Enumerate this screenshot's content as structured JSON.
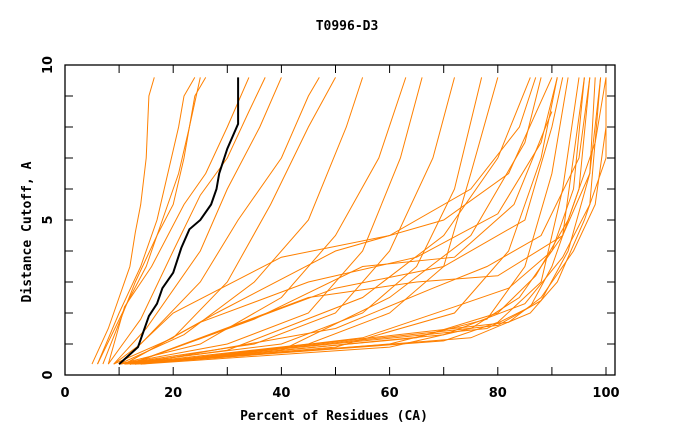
{
  "chart_data": {
    "type": "line",
    "title": "T0996-D3",
    "xlabel": "Percent of Residues (CA)",
    "ylabel": "Distance Cutoff, A",
    "xlim": [
      0,
      101.7
    ],
    "ylim": [
      0,
      10
    ],
    "x_ticks": [
      "0",
      "20",
      "40",
      "60",
      "80",
      "100"
    ],
    "x_tick_values": [
      0,
      20,
      40,
      60,
      80,
      100
    ],
    "y_ticks": [
      "0",
      "5",
      "10"
    ],
    "y_tick_values": [
      0,
      5,
      10
    ],
    "grid": false,
    "colors": {
      "models": "#ff8000",
      "highlight": "#000000"
    },
    "highlight": [
      [
        10,
        0.35
      ],
      [
        13.5,
        0.9
      ],
      [
        15.5,
        1.9
      ],
      [
        17,
        2.3
      ],
      [
        18,
        2.8
      ],
      [
        20,
        3.3
      ],
      [
        21.5,
        4.1
      ],
      [
        23,
        4.7
      ],
      [
        25,
        5.0
      ],
      [
        27,
        5.5
      ],
      [
        28,
        6.0
      ],
      [
        28.5,
        6.5
      ],
      [
        30,
        7.3
      ],
      [
        32,
        8.1
      ],
      [
        32,
        9.6
      ]
    ],
    "series": [
      [
        [
          5,
          0.35
        ],
        [
          8,
          1.5
        ],
        [
          10,
          2.5
        ],
        [
          12,
          3.5
        ],
        [
          13,
          4.6
        ],
        [
          14,
          5.5
        ],
        [
          15,
          7
        ],
        [
          15.5,
          9
        ],
        [
          16.5,
          9.6
        ]
      ],
      [
        [
          6,
          0.35
        ],
        [
          10,
          2
        ],
        [
          14,
          3.5
        ],
        [
          17,
          5
        ],
        [
          19,
          6.5
        ],
        [
          21,
          8
        ],
        [
          22,
          9
        ],
        [
          24,
          9.6
        ]
      ],
      [
        [
          6,
          0.35
        ],
        [
          12,
          2.5
        ],
        [
          15,
          3.5
        ],
        [
          18,
          5
        ],
        [
          21,
          6.5
        ],
        [
          23,
          8
        ],
        [
          25,
          9.6
        ]
      ],
      [
        [
          7,
          0.35
        ],
        [
          13,
          3
        ],
        [
          17,
          4.5
        ],
        [
          20,
          5.5
        ],
        [
          22,
          7
        ],
        [
          24,
          9
        ],
        [
          26,
          9.6
        ]
      ],
      [
        [
          8,
          0.35
        ],
        [
          11,
          2.2
        ],
        [
          16,
          3.5
        ],
        [
          22,
          5.5
        ],
        [
          26,
          6.5
        ],
        [
          30,
          8
        ],
        [
          34,
          9.6
        ]
      ],
      [
        [
          8,
          0.35
        ],
        [
          14,
          1.8
        ],
        [
          20,
          4
        ],
        [
          25,
          5.8
        ],
        [
          30,
          7
        ],
        [
          34,
          8.5
        ],
        [
          37,
          9.6
        ]
      ],
      [
        [
          9,
          0.35
        ],
        [
          15,
          1.5
        ],
        [
          25,
          4
        ],
        [
          30,
          6
        ],
        [
          36,
          8
        ],
        [
          40,
          9.6
        ]
      ],
      [
        [
          9,
          0.35
        ],
        [
          14,
          1
        ],
        [
          25,
          3
        ],
        [
          32,
          5
        ],
        [
          40,
          7
        ],
        [
          45,
          9
        ],
        [
          47,
          9.6
        ]
      ],
      [
        [
          9,
          0.35
        ],
        [
          20,
          1.2
        ],
        [
          30,
          3
        ],
        [
          38,
          5.5
        ],
        [
          45,
          8
        ],
        [
          50,
          9.6
        ]
      ],
      [
        [
          10,
          0.35
        ],
        [
          22,
          1.3
        ],
        [
          35,
          3
        ],
        [
          45,
          5
        ],
        [
          52,
          8
        ],
        [
          55,
          9.6
        ]
      ],
      [
        [
          10,
          0.35
        ],
        [
          25,
          1
        ],
        [
          40,
          2.5
        ],
        [
          50,
          4.5
        ],
        [
          58,
          7
        ],
        [
          63,
          9.6
        ]
      ],
      [
        [
          10,
          0.35
        ],
        [
          30,
          1
        ],
        [
          45,
          2
        ],
        [
          55,
          4
        ],
        [
          62,
          7
        ],
        [
          66,
          9.6
        ]
      ],
      [
        [
          10,
          0.35
        ],
        [
          35,
          1
        ],
        [
          50,
          2
        ],
        [
          60,
          4
        ],
        [
          68,
          7
        ],
        [
          72,
          9.6
        ]
      ],
      [
        [
          10,
          0.35
        ],
        [
          40,
          1
        ],
        [
          55,
          2
        ],
        [
          65,
          3.5
        ],
        [
          72,
          6
        ],
        [
          77,
          9.6
        ]
      ],
      [
        [
          11,
          0.35
        ],
        [
          45,
          1
        ],
        [
          60,
          2
        ],
        [
          70,
          3.5
        ],
        [
          75,
          6.5
        ],
        [
          80,
          9.6
        ]
      ],
      [
        [
          11,
          0.35
        ],
        [
          30,
          0.8
        ],
        [
          55,
          2.5
        ],
        [
          70,
          4.5
        ],
        [
          80,
          7
        ],
        [
          86,
          9.6
        ]
      ],
      [
        [
          11,
          0.35
        ],
        [
          40,
          0.8
        ],
        [
          60,
          2.5
        ],
        [
          75,
          4.5
        ],
        [
          85,
          7.5
        ],
        [
          88,
          9.6
        ]
      ],
      [
        [
          12,
          0.35
        ],
        [
          50,
          0.9
        ],
        [
          72,
          2
        ],
        [
          82,
          4
        ],
        [
          88,
          7
        ],
        [
          91,
          9.6
        ]
      ],
      [
        [
          12,
          0.35
        ],
        [
          60,
          1
        ],
        [
          78,
          1.8
        ],
        [
          85,
          3.5
        ],
        [
          90,
          6.5
        ],
        [
          93,
          9.6
        ]
      ],
      [
        [
          12,
          0.35
        ],
        [
          70,
          1.1
        ],
        [
          80,
          1.7
        ],
        [
          88,
          3
        ],
        [
          92,
          6
        ],
        [
          95,
          9.6
        ]
      ],
      [
        [
          12,
          0.35
        ],
        [
          78,
          1.5
        ],
        [
          86,
          2.2
        ],
        [
          90,
          3.5
        ],
        [
          95,
          6
        ],
        [
          97,
          9.6
        ]
      ],
      [
        [
          13,
          0.35
        ],
        [
          80,
          1.6
        ],
        [
          88,
          2.4
        ],
        [
          93,
          4
        ],
        [
          97,
          6.5
        ],
        [
          99,
          9.6
        ]
      ],
      [
        [
          13,
          0.35
        ],
        [
          75,
          1.2
        ],
        [
          86,
          2
        ],
        [
          91,
          3
        ],
        [
          96,
          5
        ],
        [
          100,
          7
        ],
        [
          100,
          9.6
        ]
      ],
      [
        [
          13,
          0.35
        ],
        [
          82,
          1.7
        ],
        [
          88,
          2.5
        ],
        [
          94,
          4
        ],
        [
          98,
          5.5
        ],
        [
          100,
          8
        ]
      ],
      [
        [
          14,
          0.35
        ],
        [
          70,
          1.3
        ],
        [
          85,
          2.3
        ],
        [
          92,
          3.8
        ],
        [
          97,
          5.5
        ],
        [
          99,
          9.6
        ]
      ],
      [
        [
          14,
          0.35
        ],
        [
          60,
          0.9
        ],
        [
          75,
          1.5
        ],
        [
          84,
          2.5
        ],
        [
          92,
          4.5
        ],
        [
          96,
          9.6
        ]
      ],
      [
        [
          12,
          0.35
        ],
        [
          30,
          1.5
        ],
        [
          50,
          2.8
        ],
        [
          70,
          3.5
        ],
        [
          85,
          5
        ],
        [
          90,
          8
        ],
        [
          92,
          9.6
        ]
      ],
      [
        [
          11,
          0.35
        ],
        [
          25,
          1.7
        ],
        [
          45,
          3
        ],
        [
          65,
          3.8
        ],
        [
          80,
          5.2
        ],
        [
          88,
          7.5
        ],
        [
          91,
          9.6
        ]
      ],
      [
        [
          12,
          0.35
        ],
        [
          35,
          1.8
        ],
        [
          55,
          3.5
        ],
        [
          72,
          3.8
        ],
        [
          83,
          5.5
        ],
        [
          90,
          8.5
        ]
      ],
      [
        [
          10,
          0.35
        ],
        [
          20,
          2
        ],
        [
          40,
          3.8
        ],
        [
          60,
          4.5
        ],
        [
          75,
          6
        ],
        [
          84,
          8
        ],
        [
          87,
          9.6
        ]
      ],
      [
        [
          11,
          0.35
        ],
        [
          28,
          2
        ],
        [
          50,
          4
        ],
        [
          70,
          5
        ],
        [
          82,
          6.5
        ],
        [
          90,
          9.6
        ]
      ],
      [
        [
          12,
          0.35
        ],
        [
          45,
          2.5
        ],
        [
          65,
          3
        ],
        [
          80,
          3.2
        ],
        [
          92,
          4.5
        ],
        [
          97,
          6.5
        ],
        [
          98,
          9.6
        ]
      ],
      [
        [
          13,
          0.35
        ],
        [
          50,
          1.5
        ],
        [
          68,
          2.8
        ],
        [
          78,
          3.5
        ],
        [
          88,
          4.5
        ],
        [
          95,
          7
        ],
        [
          97,
          9.6
        ]
      ],
      [
        [
          14,
          0.35
        ],
        [
          55,
          1.2
        ],
        [
          72,
          2.2
        ],
        [
          82,
          2.8
        ],
        [
          90,
          4
        ],
        [
          94,
          6
        ],
        [
          96,
          9.6
        ]
      ],
      [
        [
          12,
          0.35
        ],
        [
          65,
          1.2
        ],
        [
          80,
          2
        ],
        [
          87,
          3.2
        ],
        [
          93,
          5
        ],
        [
          98,
          7.5
        ],
        [
          100,
          9.6
        ]
      ]
    ]
  }
}
